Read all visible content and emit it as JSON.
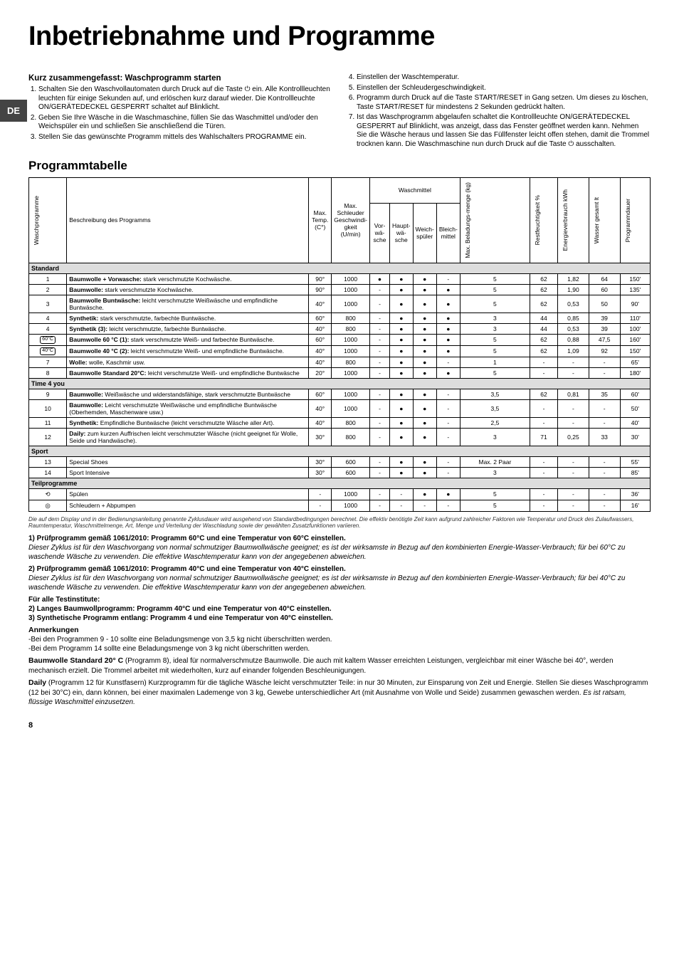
{
  "lang_tab": "DE",
  "title": "Inbetriebnahme und Programme",
  "left_col": {
    "heading": "Kurz zusammengefasst: Waschprogramm starten",
    "items": [
      "Schalten Sie den Waschvollautomaten durch Druck auf die Taste ⏻ ein. Alle Kontrollleuchten leuchten für einige Sekunden auf, und erlöschen kurz darauf wieder. Die Kontrollleuchte ON/GERÄTEDECKEL GESPERRT schaltet auf Blinklicht.",
      "Geben Sie Ihre Wäsche in die Waschmaschine, füllen Sie das Waschmittel und/oder den Weichspüler ein und schließen Sie anschließend die Türen.",
      "Stellen Sie das gewünschte Programm mittels des Wahlschalters PROGRAMME ein."
    ]
  },
  "right_col": {
    "items": [
      "Einstellen der Waschtemperatur.",
      "Einstellen der Schleudergeschwindigkeit.",
      "Programm durch Druck auf die Taste START/RESET in Gang setzen. Um dieses zu löschen, Taste START/RESET für mindestens 2 Sekunden gedrückt halten.",
      "Ist das Waschprogramm abgelaufen schaltet die Kontrollleuchte ON/GERÄTEDECKEL GESPERRT auf Blinklicht, was anzeigt, dass das Fenster geöffnet werden kann. Nehmen Sie die Wäsche heraus und lassen Sie das Füllfenster leicht offen stehen, damit die Trommel trocknen kann. Die Waschmaschine nun durch Druck auf die Taste ⏻ ausschalten."
    ]
  },
  "table_heading": "Programmtabelle",
  "headers": {
    "prog": "Waschprogramme",
    "desc": "Beschreibung des Programms",
    "temp": "Max. Temp. (C°)",
    "speed": "Max. Schleuder Geschwindi-gkeit (U/min)",
    "wasch": "Waschmittel",
    "vor": "Vor-wä-sche",
    "haupt": "Haupt-wä-sche",
    "weich": "Weich-spüler",
    "bleich": "Bleich-mittel",
    "belad": "Max. Beladungs-menge (kg)",
    "rest": "Restfeuchtigkeit %",
    "energ": "Energieverbrauch kWh",
    "wasser": "Wasser gesamt lt",
    "dauer": "Programmdauer"
  },
  "groups": {
    "g1": "Standard",
    "g2": "Time 4 you",
    "g3": "Sport",
    "g4": "Teilprogramme"
  },
  "rows": [
    {
      "n": "1",
      "d": "Baumwolle + Vorwasche: stark verschmutzte Kochwäsche.",
      "t": "90°",
      "s": "1000",
      "v": "●",
      "h": "●",
      "w": "●",
      "b": "-",
      "kg": "5",
      "rf": "62",
      "e": "1,82",
      "wl": "64",
      "du": "150'"
    },
    {
      "n": "2",
      "d": "Baumwolle: stark verschmutzte Kochwäsche.",
      "t": "90°",
      "s": "1000",
      "v": "-",
      "h": "●",
      "w": "●",
      "b": "●",
      "kg": "5",
      "rf": "62",
      "e": "1,90",
      "wl": "60",
      "du": "135'"
    },
    {
      "n": "3",
      "d": "Baumwolle Buntwäsche: leicht verschmutzte Weißwäsche und empfindliche Buntwäsche.",
      "t": "40°",
      "s": "1000",
      "v": "-",
      "h": "●",
      "w": "●",
      "b": "●",
      "kg": "5",
      "rf": "62",
      "e": "0,53",
      "wl": "50",
      "du": "90'"
    },
    {
      "n": "4",
      "d": "Synthetik: stark verschmutzte, farbechte Buntwäsche.",
      "t": "60°",
      "s": "800",
      "v": "-",
      "h": "●",
      "w": "●",
      "b": "●",
      "kg": "3",
      "rf": "44",
      "e": "0,85",
      "wl": "39",
      "du": "110'"
    },
    {
      "n": "4",
      "d": "Synthetik (3): leicht verschmutzte, farbechte Buntwäsche.",
      "t": "40°",
      "s": "800",
      "v": "-",
      "h": "●",
      "w": "●",
      "b": "●",
      "kg": "3",
      "rf": "44",
      "e": "0,53",
      "wl": "39",
      "du": "100'"
    },
    {
      "n": "60°C",
      "d": "Baumwolle 60 °C (1): stark verschmutzte Weiß- und farbechte Buntwäsche.",
      "t": "60°",
      "s": "1000",
      "v": "-",
      "h": "●",
      "w": "●",
      "b": "●",
      "kg": "5",
      "rf": "62",
      "e": "0,88",
      "wl": "47,5",
      "du": "160'"
    },
    {
      "n": "40°C",
      "d": "Baumwolle 40 °C (2): leicht verschmutzte Weiß- und empfindliche Buntwäsche.",
      "t": "40°",
      "s": "1000",
      "v": "-",
      "h": "●",
      "w": "●",
      "b": "●",
      "kg": "5",
      "rf": "62",
      "e": "1,09",
      "wl": "92",
      "du": "150'"
    },
    {
      "n": "7",
      "d": "Wolle: wolle, Kaschmir usw.",
      "t": "40°",
      "s": "800",
      "v": "-",
      "h": "●",
      "w": "●",
      "b": "-",
      "kg": "1",
      "rf": "-",
      "e": "-",
      "wl": "-",
      "du": "65'"
    },
    {
      "n": "8",
      "d": "Baumwolle Standard 20°C: leicht verschmutzte Weiß- und empfindliche Buntwäsche",
      "t": "20°",
      "s": "1000",
      "v": "-",
      "h": "●",
      "w": "●",
      "b": "●",
      "kg": "5",
      "rf": "-",
      "e": "-",
      "wl": "-",
      "du": "180'"
    }
  ],
  "rows2": [
    {
      "n": "9",
      "d": "Baumwolle: Weißwäsche und widerstandsfähige, stark verschmutzte Buntwäsche",
      "t": "60°",
      "s": "1000",
      "v": "-",
      "h": "●",
      "w": "●",
      "b": "-",
      "kg": "3,5",
      "rf": "62",
      "e": "0,81",
      "wl": "35",
      "du": "60'"
    },
    {
      "n": "10",
      "d": "Baumwolle: Leicht verschmutzte Weißwäsche und empfindliche Buntwäsche (Oberhemden, Maschenware usw.)",
      "t": "40°",
      "s": "1000",
      "v": "-",
      "h": "●",
      "w": "●",
      "b": "-",
      "kg": "3,5",
      "rf": "-",
      "e": "-",
      "wl": "-",
      "du": "50'"
    },
    {
      "n": "11",
      "d": "Synthetik: Empfindliche Buntwäsche (leicht verschmutzte Wäsche aller Art).",
      "t": "40°",
      "s": "800",
      "v": "-",
      "h": "●",
      "w": "●",
      "b": "-",
      "kg": "2,5",
      "rf": "-",
      "e": "-",
      "wl": "-",
      "du": "40'"
    },
    {
      "n": "12",
      "d": "Daily: zum kurzen Auffrischen leicht verschmutzter Wäsche (nicht geeignet für Wolle, Seide und Handwäsche).",
      "t": "30°",
      "s": "800",
      "v": "-",
      "h": "●",
      "w": "●",
      "b": "-",
      "kg": "3",
      "rf": "71",
      "e": "0,25",
      "wl": "33",
      "du": "30'"
    }
  ],
  "rows3": [
    {
      "n": "13",
      "d": "Special Shoes",
      "t": "30°",
      "s": "600",
      "v": "-",
      "h": "●",
      "w": "●",
      "b": "-",
      "kg": "Max. 2 Paar",
      "rf": "-",
      "e": "-",
      "wl": "-",
      "du": "55'"
    },
    {
      "n": "14",
      "d": "Sport Intensive",
      "t": "30°",
      "s": "600",
      "v": "-",
      "h": "●",
      "w": "●",
      "b": "-",
      "kg": "3",
      "rf": "-",
      "e": "-",
      "wl": "-",
      "du": "85'"
    }
  ],
  "rows4": [
    {
      "n": "⟲",
      "d": "Spülen",
      "t": "-",
      "s": "1000",
      "v": "-",
      "h": "-",
      "w": "●",
      "b": "●",
      "kg": "5",
      "rf": "-",
      "e": "-",
      "wl": "-",
      "du": "36'"
    },
    {
      "n": "◎",
      "d": "Schleudern + Abpumpen",
      "t": "-",
      "s": "1000",
      "v": "-",
      "h": "-",
      "w": "-",
      "b": "-",
      "kg": "5",
      "rf": "-",
      "e": "-",
      "wl": "-",
      "du": "16'"
    }
  ],
  "footnote": "Die auf dem Display und in der Bedienungsanleitung genannte Zyklusdauer wird ausgehend von Standardbedingungen berechnet. Die effektiv benötigte Zeit kann aufgrund zahlreicher Faktoren wie Temperatur und Druck des Zulaufwassers, Raumtemperatur, Waschmittelmenge, Art, Menge und Verteilung der Waschladung sowie der gewählten Zusatzfunktionen variieren.",
  "tests": {
    "h1": "1) Prüfprogramm gemäß 1061/2010: Programm 60°C und eine Temperatur von 60°C einstellen.",
    "p1": "Dieser Zyklus ist für den Waschvorgang von normal schmutziger Baumwollwäsche geeignet; es ist der wirksamste in Bezug auf den kombinierten Energie-Wasser-Verbrauch; für bei 60°C zu waschende Wäsche zu verwenden. Die effektive Waschtemperatur kann von der angegebenen abweichen.",
    "h2": "2) Prüfprogramm gemäß 1061/2010: Programm 40°C und eine Temperatur von 40°C einstellen.",
    "p2": "Dieser Zyklus ist für den Waschvorgang von normal schmutziger Baumwollwäsche geeignet; es ist der wirksamste in Bezug auf den kombinierten Energie-Wasser-Verbrauch; für bei 40°C zu waschende Wäsche zu verwenden. Die effektive Waschtemperatur kann von der angegebenen abweichen.",
    "h3": "Für alle Testinstitute:",
    "l2": "2) Langes Baumwollprogramm: Programm 40°C und eine Temperatur von 40°C einstellen.",
    "l3": "3) Synthetische Programm entlang: Programm 4 und eine Temperatur von 40°C einstellen."
  },
  "anmerk": {
    "head": "Anmerkungen",
    "a1": "-Bei den Programmen 9 - 10 sollte eine Beladungsmenge von 3,5 kg nicht überschritten werden.",
    "a2": "-Bei dem Programm 14 sollte eine Beladungsmenge von 3 kg nicht überschritten werden."
  },
  "bottom": {
    "b1a": "Baumwolle Standard 20° C",
    "b1b": " (Programm 8), ideal für normalverschmutze Baumwolle. Die auch mit kaltem Wasser erreichten Leistungen, vergleichbar mit einer Wäsche bei 40°, werden mechanisch erzielt. Die Trommel arbeitet mit wiederholten, kurz auf einander folgenden Beschleunigungen.",
    "b2a": "Daily",
    "b2b": " (Programm 12 für Kunstfasern) Kurzprogramm für die tägliche Wäsche leicht verschmutzter Teile: in nur 30 Minuten, zur Einsparung von Zeit und Energie. Stellen Sie dieses Waschprogramm (12 bei 30°C) ein, dann können, bei einer maximalen Lademenge von 3 kg, Gewebe unterschiedlicher Art (mit Ausnahme von Wolle und Seide) zusammen gewaschen werden. ",
    "b2c": "Es ist ratsam, flüssige Waschmittel einzusetzen."
  },
  "page_num": "8"
}
